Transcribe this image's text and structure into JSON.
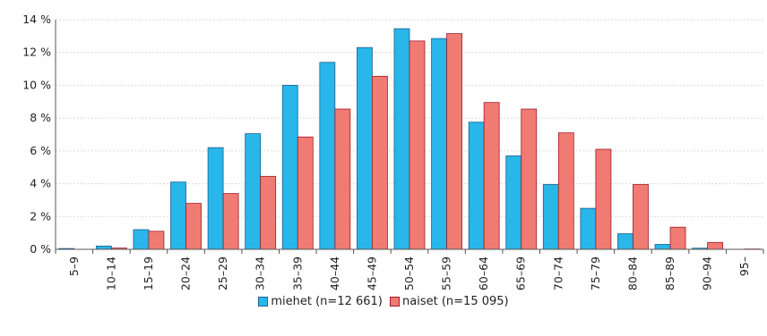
{
  "chart_data": {
    "type": "bar",
    "categories": [
      "5–9",
      "10–14",
      "15–19",
      "20–24",
      "25–29",
      "30–34",
      "35–39",
      "40–44",
      "45–49",
      "50–54",
      "55–59",
      "60–64",
      "65–69",
      "70–74",
      "75–79",
      "80–84",
      "85–89",
      "90–94",
      "95–"
    ],
    "series": [
      {
        "name": "miehet (n=12 661)",
        "color": "#29b6e8",
        "stroke": "#1f5f8f",
        "values": [
          0.05,
          0.2,
          1.2,
          4.1,
          6.2,
          7.05,
          10.0,
          11.4,
          12.3,
          13.45,
          12.85,
          7.75,
          5.7,
          3.95,
          2.5,
          0.95,
          0.3,
          0.07,
          0
        ]
      },
      {
        "name": "naiset  (n=15 095)",
        "color": "#f07b73",
        "stroke": "#a01a2a",
        "values": [
          0.0,
          0.08,
          1.1,
          2.8,
          3.4,
          4.45,
          6.85,
          8.55,
          10.55,
          12.7,
          13.15,
          8.95,
          8.55,
          7.1,
          6.1,
          3.95,
          1.35,
          0.42,
          0.02
        ]
      }
    ],
    "yticks": [
      "0 %",
      "2 %",
      "4 %",
      "6 %",
      "8 %",
      "10 %",
      "12 %",
      "14 %"
    ],
    "ylim": [
      0,
      14
    ],
    "grid": true,
    "legend_position": "bottom"
  }
}
